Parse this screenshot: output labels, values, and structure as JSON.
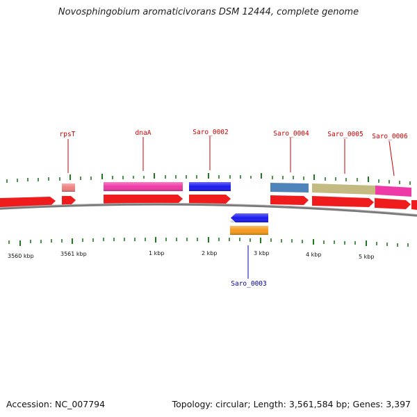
{
  "title": "Novosphingobium aromaticivorans DSM 12444, complete genome",
  "footer": {
    "accession": "Accession: NC_007794",
    "summary": "Topology: circular; Length: 3,561,584 bp; Genes: 3,397"
  },
  "colors": {
    "cds_red": "#ee1c1c",
    "rpsT_pink": "#ee8080",
    "dnaA_magenta": "#ee3aa6",
    "saro_0002_blue": "#1a1aee",
    "saro_0003_blue": "#1a1aee",
    "saro_0003_orange": "#f59a1a",
    "saro_0004_steel": "#4f84bb",
    "saro_0005_khaki": "#c4bb82",
    "saro_0006_pink": "#ee3aa6",
    "tick_green": "#1f7a1f",
    "label_red": "#cc0000",
    "label_blue": "#0000aa",
    "backbone_gray": "#808080"
  },
  "gene_labels": [
    {
      "id": "rpsT",
      "text": "rpsT"
    },
    {
      "id": "dnaA",
      "text": "dnaA"
    },
    {
      "id": "saro_0002",
      "text": "Saro_0002"
    },
    {
      "id": "saro_0003",
      "text": "Saro_0003"
    },
    {
      "id": "saro_0004",
      "text": "Saro_0004"
    },
    {
      "id": "saro_0005",
      "text": "Saro_0005"
    },
    {
      "id": "saro_0006",
      "text": "Saro_0006"
    }
  ],
  "scale_labels": [
    "3560 kbp",
    "3561 kbp",
    "1 kbp",
    "2 kbp",
    "3 kbp",
    "4 kbp",
    "5 kbp"
  ]
}
